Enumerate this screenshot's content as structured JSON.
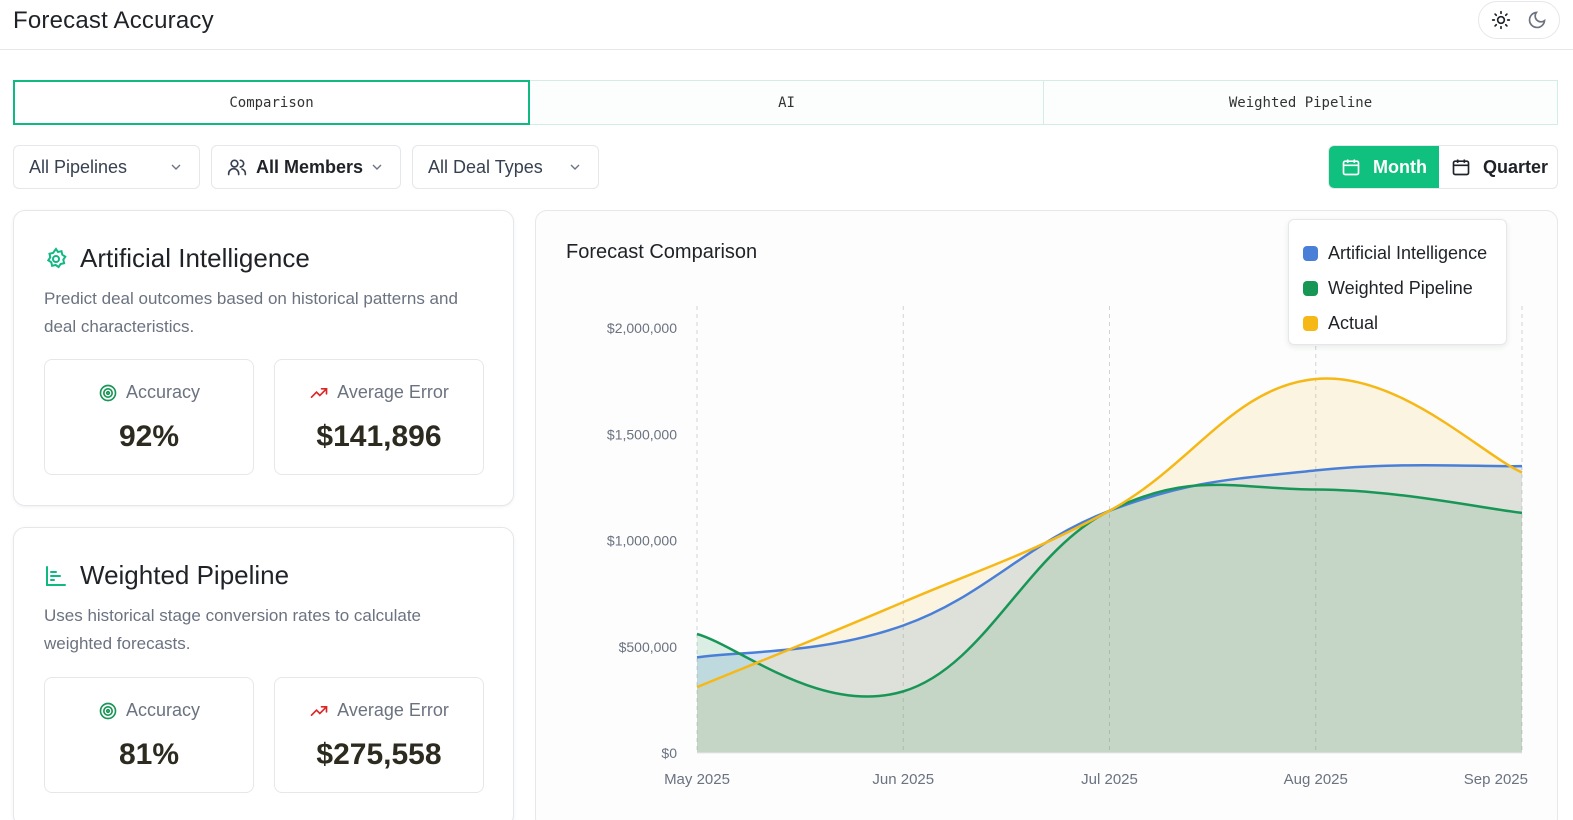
{
  "header": {
    "title": "Forecast Accuracy"
  },
  "theme": {
    "light_icon": "sun-icon",
    "dark_icon": "moon-icon"
  },
  "tabs": [
    {
      "label": "Comparison",
      "active": true
    },
    {
      "label": "AI",
      "active": false
    },
    {
      "label": "Weighted Pipeline",
      "active": false
    }
  ],
  "filters": {
    "pipelines": "All Pipelines",
    "members": "All Members",
    "deal_types": "All Deal Types"
  },
  "range": {
    "month": "Month",
    "quarter": "Quarter",
    "selected": "Month"
  },
  "cards": [
    {
      "title": "Artificial Intelligence",
      "icon": "ai-gear-icon",
      "description": "Predict deal outcomes based on historical patterns and deal characteristics.",
      "accuracy_label": "Accuracy",
      "accuracy": "92%",
      "error_label": "Average Error",
      "error": "$141,896"
    },
    {
      "title": "Weighted Pipeline",
      "icon": "bar-chart-icon",
      "description": "Uses historical stage conversion rates to calculate weighted forecasts.",
      "accuracy_label": "Accuracy",
      "accuracy": "81%",
      "error_label": "Average Error",
      "error": "$275,558"
    }
  ],
  "colors": {
    "accent": "#10b981",
    "ai": "#4a7fd8",
    "weighted": "#189656",
    "actual": "#f6b817",
    "error_icon": "#dc2626"
  },
  "chart_data": {
    "type": "area",
    "title": "Forecast Comparison",
    "x": [
      "May 2025",
      "Jun 2025",
      "Jul 2025",
      "Aug 2025",
      "Sep 2025"
    ],
    "yticks": [
      "$0",
      "$500,000",
      "$1,000,000",
      "$1,500,000",
      "$2,000,000"
    ],
    "ylim": [
      0,
      2000000
    ],
    "grid": "vertical-dashed",
    "legend_position": "top-right",
    "series": [
      {
        "name": "Artificial Intelligence",
        "color": "#4a7fd8",
        "values": [
          450000,
          600000,
          1140000,
          1330000,
          1350000
        ]
      },
      {
        "name": "Weighted Pipeline",
        "color": "#189656",
        "values": [
          560000,
          290000,
          1140000,
          1240000,
          1130000
        ]
      },
      {
        "name": "Actual",
        "color": "#f6b817",
        "values": [
          310000,
          710000,
          1140000,
          1760000,
          1320000
        ]
      }
    ]
  }
}
